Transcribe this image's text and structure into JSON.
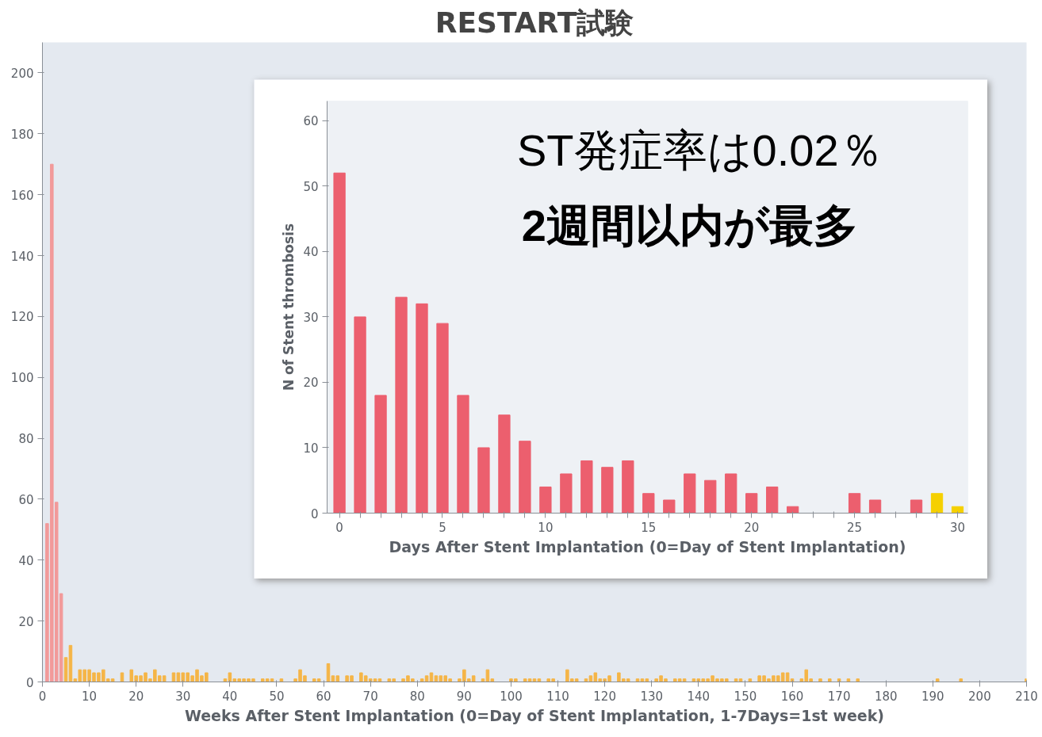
{
  "chart_data": [
    {
      "type": "bar",
      "title": "RESTART試験",
      "xlabel": "Weeks After Stent Implantation (0=Day of Stent Implantation, 1-7Days=1st week)",
      "xlim": [
        0,
        210
      ],
      "xticks": [
        0,
        10,
        20,
        30,
        40,
        50,
        60,
        70,
        80,
        90,
        100,
        110,
        120,
        130,
        140,
        150,
        160,
        170,
        180,
        190,
        200,
        210
      ],
      "ylim": [
        0,
        210
      ],
      "yticks": [
        0,
        20,
        40,
        60,
        80,
        100,
        120,
        140,
        160,
        180,
        200
      ],
      "series": [
        {
          "color": "#f29a9a",
          "x": [
            1,
            2,
            3,
            4
          ],
          "values": [
            52,
            170,
            59,
            29
          ]
        },
        {
          "color": "#f5b547",
          "x": [
            5,
            6,
            7,
            8,
            9,
            10,
            11,
            12,
            13,
            14,
            15,
            17,
            19,
            20,
            21,
            22,
            23,
            24,
            25,
            26,
            28,
            29,
            30,
            31,
            32,
            33,
            34,
            35,
            39,
            40,
            41,
            42,
            43,
            44,
            45,
            47,
            48,
            49,
            51,
            54,
            55,
            56,
            58,
            59,
            61,
            62,
            63,
            65,
            66,
            68,
            69,
            70,
            71,
            72,
            74,
            75,
            77,
            78,
            79,
            81,
            82,
            83,
            84,
            85,
            86,
            87,
            89,
            90,
            91,
            92,
            94,
            95,
            96,
            100,
            101,
            103,
            104,
            105,
            106,
            108,
            109,
            112,
            113,
            114,
            116,
            117,
            118,
            119,
            120,
            121,
            123,
            124,
            125,
            127,
            128,
            129,
            131,
            132,
            133,
            135,
            136,
            137,
            139,
            140,
            141,
            142,
            143,
            144,
            145,
            146,
            148,
            149,
            151,
            153,
            154,
            155,
            156,
            157,
            158,
            159,
            160,
            162,
            163,
            164,
            166,
            168,
            170,
            172,
            174,
            191,
            196,
            210
          ],
          "values": [
            8,
            12,
            1,
            4,
            4,
            4,
            3,
            3,
            4,
            1,
            1,
            3,
            4,
            2,
            2,
            3,
            1,
            4,
            2,
            2,
            3,
            3,
            3,
            3,
            2,
            4,
            2,
            3,
            1,
            3,
            1,
            1,
            1,
            1,
            1,
            1,
            1,
            1,
            1,
            1,
            4,
            2,
            1,
            1,
            6,
            2,
            2,
            2,
            2,
            3,
            2,
            1,
            1,
            1,
            1,
            1,
            1,
            2,
            1,
            1,
            2,
            3,
            2,
            2,
            2,
            1,
            1,
            4,
            1,
            2,
            1,
            4,
            1,
            1,
            1,
            1,
            1,
            1,
            1,
            1,
            1,
            4,
            1,
            1,
            1,
            2,
            3,
            1,
            1,
            2,
            3,
            1,
            1,
            1,
            1,
            1,
            1,
            2,
            1,
            1,
            1,
            1,
            1,
            1,
            1,
            1,
            2,
            1,
            1,
            1,
            1,
            1,
            1,
            2,
            2,
            1,
            2,
            2,
            3,
            3,
            1,
            1,
            4,
            1,
            1,
            1,
            1,
            1,
            1,
            1,
            1,
            1
          ]
        }
      ]
    },
    {
      "type": "bar",
      "xlabel": "Days After Stent Implantation (0=Day of Stent Implantation)",
      "ylabel": "N of Stent thrombosis",
      "xlim": [
        -0.6,
        30.5
      ],
      "xticks": [
        0,
        {
          "value": 1,
          "label": null
        },
        {
          "value": 2,
          "label": null
        },
        {
          "value": 3,
          "label": null
        },
        {
          "value": 4,
          "label": null
        },
        5,
        {
          "value": 6,
          "label": null
        },
        {
          "value": 7,
          "label": null
        },
        {
          "value": 8,
          "label": null
        },
        {
          "value": 9,
          "label": null
        },
        10,
        {
          "value": 11,
          "label": null
        },
        {
          "value": 12,
          "label": null
        },
        {
          "value": 13,
          "label": null
        },
        {
          "value": 14,
          "label": null
        },
        15,
        {
          "value": 16,
          "label": null
        },
        {
          "value": 17,
          "label": null
        },
        {
          "value": 18,
          "label": null
        },
        {
          "value": 19,
          "label": null
        },
        20,
        {
          "value": 21,
          "label": null
        },
        {
          "value": 22,
          "label": null
        },
        {
          "value": 23,
          "label": null
        },
        {
          "value": 24,
          "label": null
        },
        25,
        {
          "value": 26,
          "label": null
        },
        {
          "value": 27,
          "label": null
        },
        {
          "value": 28,
          "label": null
        },
        {
          "value": 29,
          "label": null
        },
        30
      ],
      "ylim": [
        0,
        63
      ],
      "yticks": [
        0,
        10,
        20,
        30,
        40,
        50,
        60
      ],
      "series": [
        {
          "color": "#ec5f6e",
          "x": [
            0,
            1,
            2,
            3,
            4,
            5,
            6,
            7,
            8,
            9,
            10,
            11,
            12,
            13,
            14,
            15,
            16,
            17,
            18,
            19,
            20,
            21,
            22,
            23,
            24,
            25,
            26,
            27,
            28
          ],
          "values": [
            52,
            30,
            18,
            33,
            32,
            29,
            18,
            10,
            15,
            11,
            4,
            6,
            8,
            7,
            8,
            3,
            2,
            6,
            5,
            6,
            3,
            4,
            1,
            0,
            0,
            3,
            2,
            0,
            2
          ]
        },
        {
          "color": "#f5d000",
          "x": [
            29,
            30
          ],
          "values": [
            3,
            1
          ]
        }
      ],
      "annotations": [
        {
          "text": "ST発症率は0.02％"
        },
        {
          "text": "2週間以内が最多"
        }
      ]
    }
  ]
}
